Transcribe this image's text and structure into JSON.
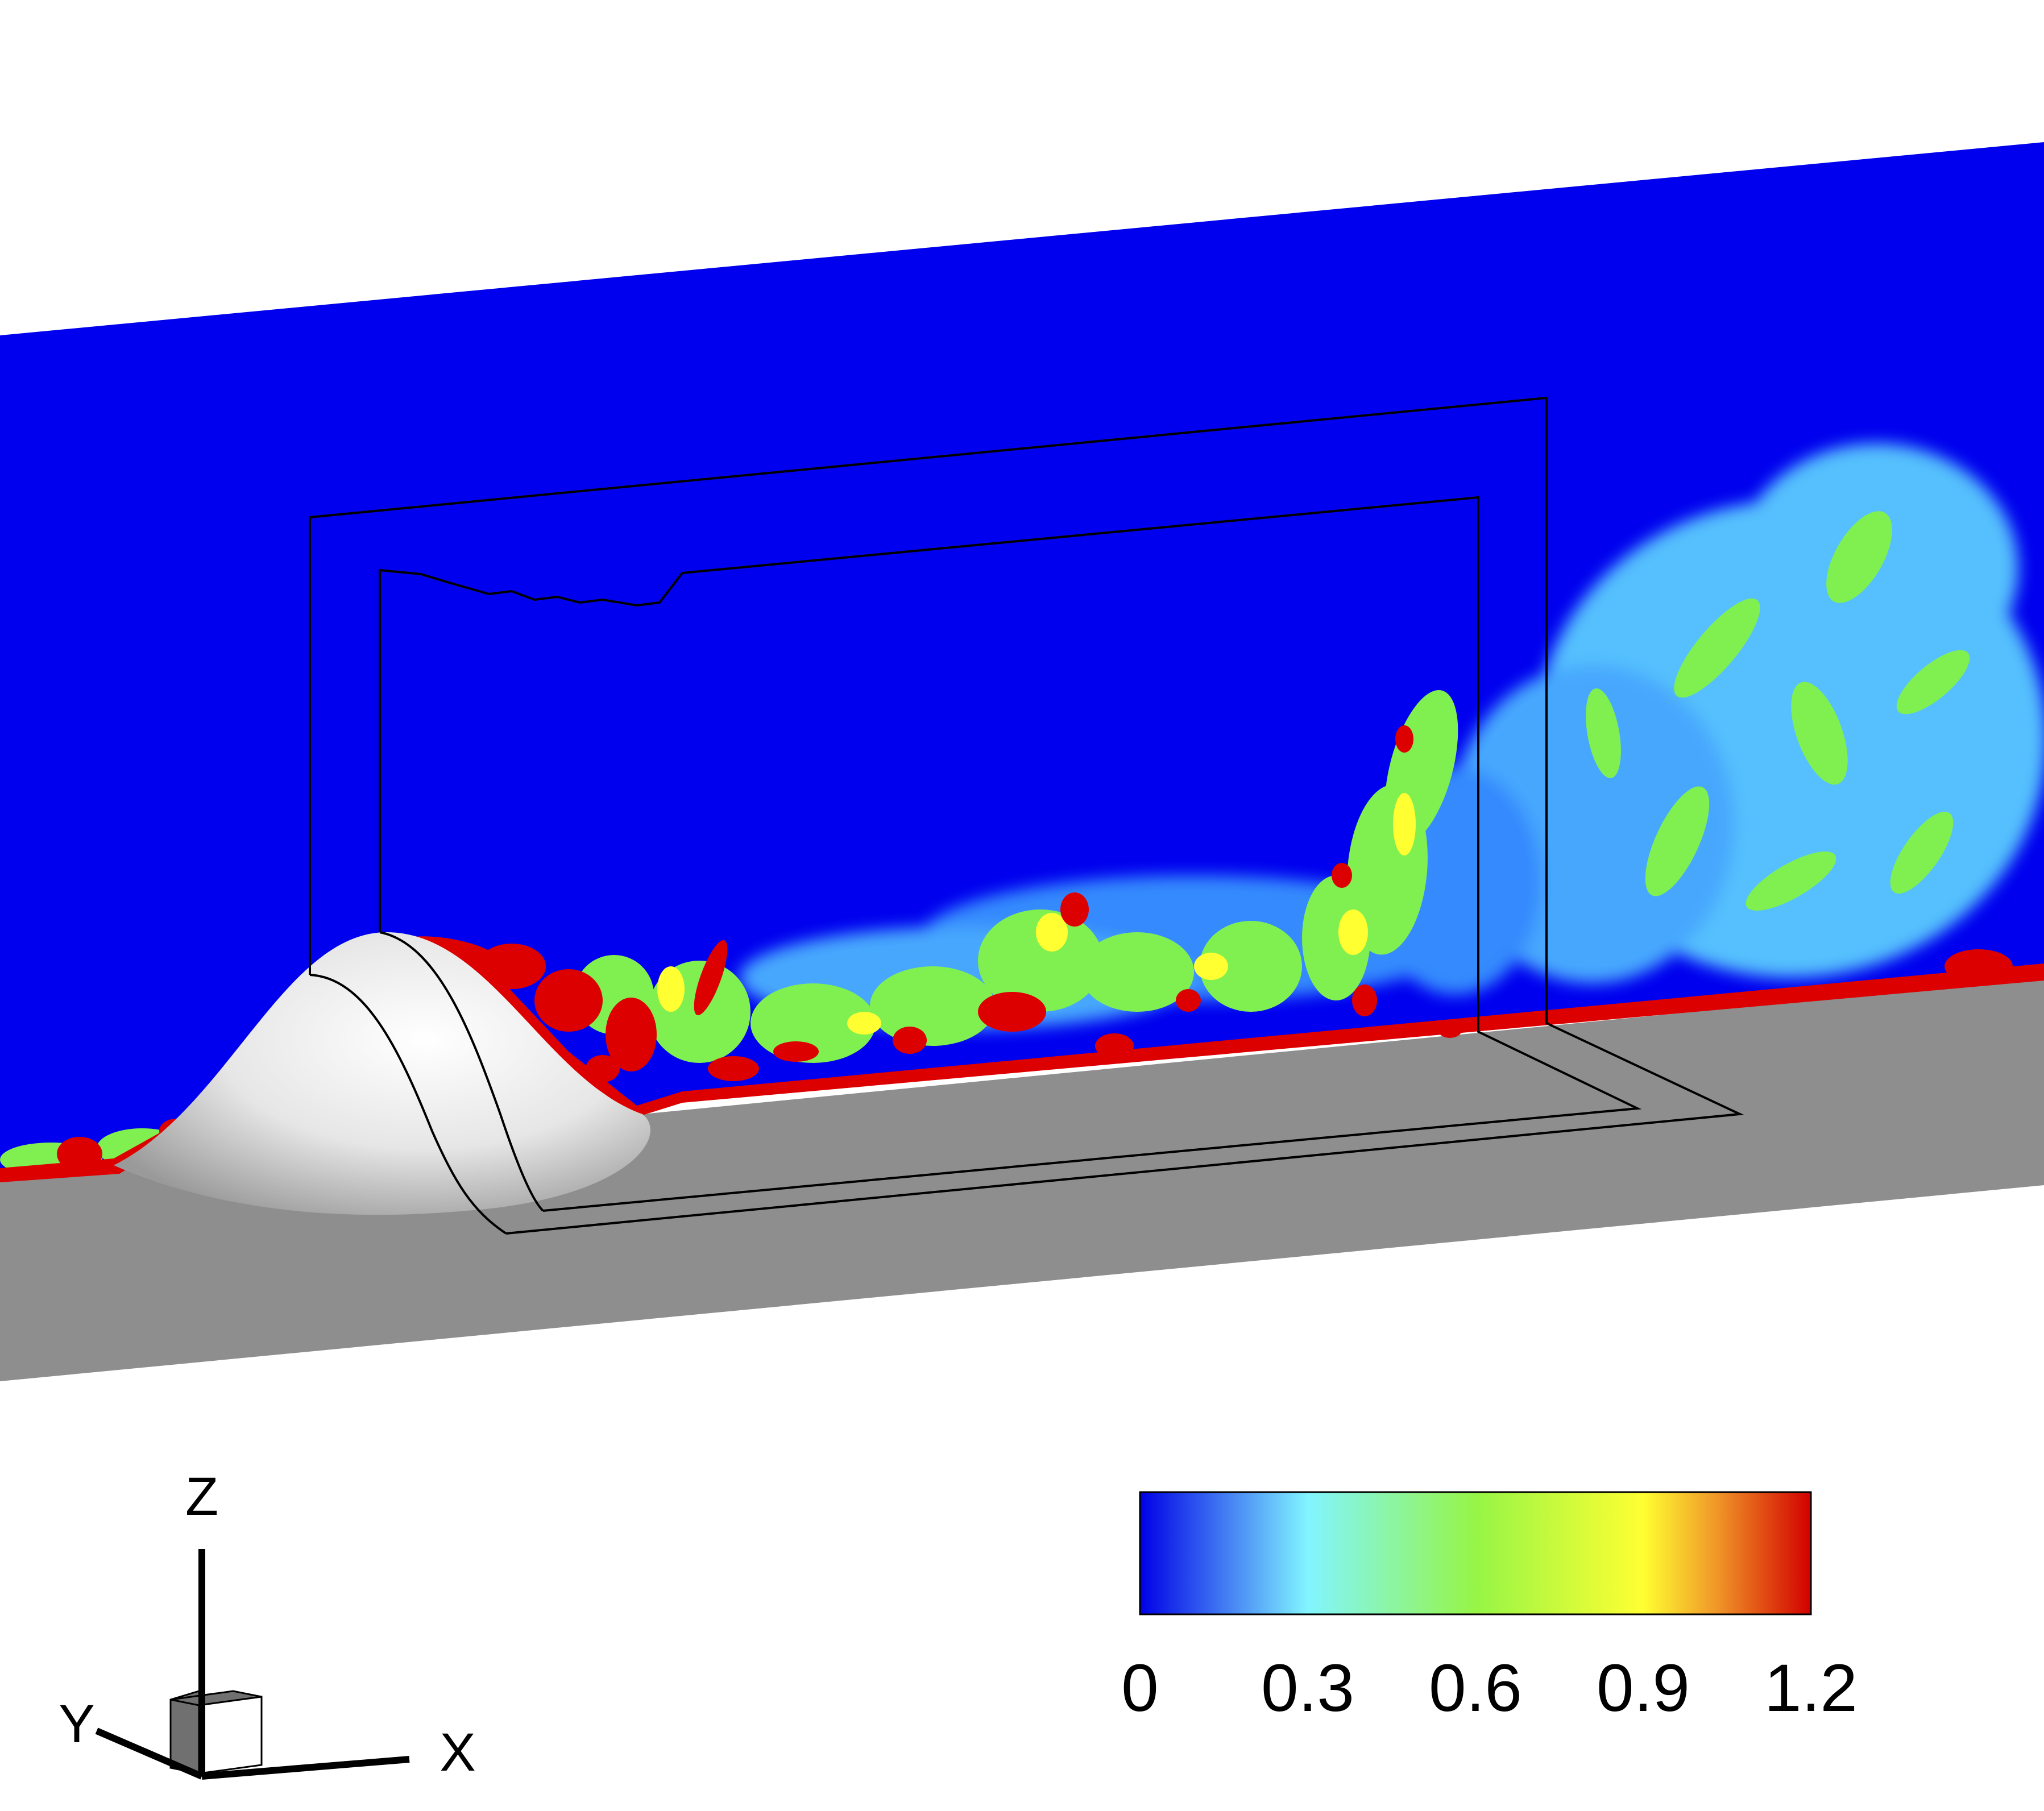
{
  "axes_triad": {
    "z_label": "Z",
    "y_label": "Y",
    "x_label": "X"
  },
  "colorbar": {
    "min": 0,
    "max": 1.2,
    "ticks": [
      "0",
      "0.3",
      "0.6",
      "0.9",
      "1.2"
    ],
    "colors": [
      "#0000e6",
      "#82f5ff",
      "#96f546",
      "#ffff32",
      "#f09628",
      "#d20000"
    ]
  },
  "scene_colors": {
    "freestream": "#0000ee",
    "ground": "#8e8e8e",
    "hump": "#f2f2f2",
    "outline": "#000000"
  }
}
